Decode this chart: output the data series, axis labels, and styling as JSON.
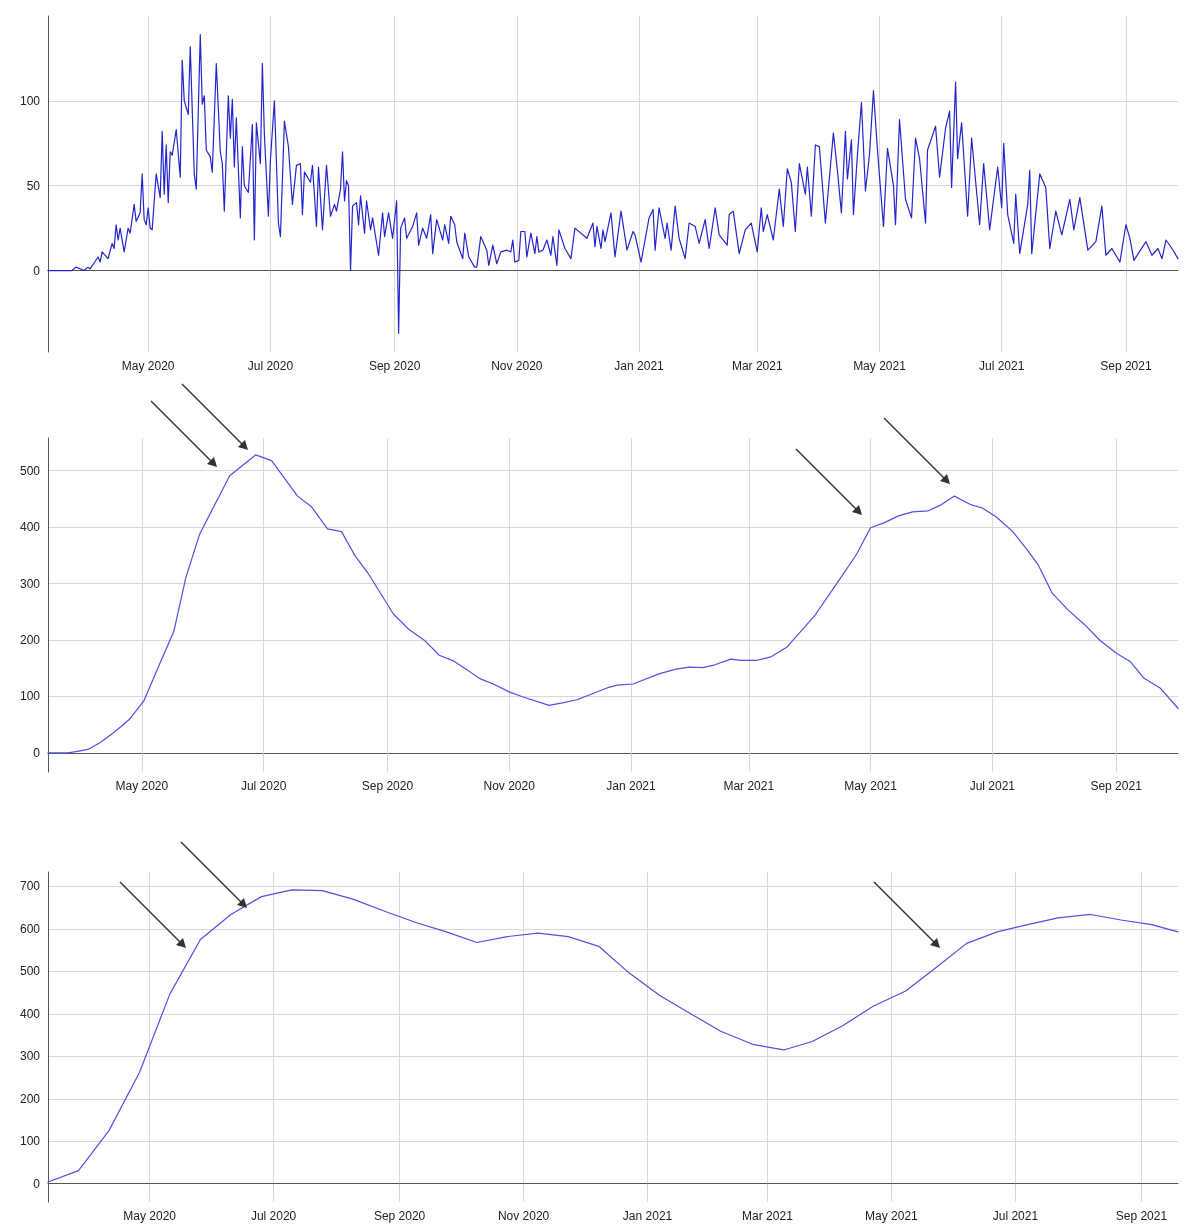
{
  "chart_data": [
    {
      "type": "line",
      "grid": true,
      "marker": "none",
      "line_style": "solid",
      "xlim": [
        "2020-03-12",
        "2021-09-27"
      ],
      "ylim": [
        -48,
        150
      ],
      "yticks": [
        0,
        50,
        100
      ],
      "xticks": [
        {
          "value": "2020-05-01",
          "label": "May 2020"
        },
        {
          "value": "2020-07-01",
          "label": "Jul 2020"
        },
        {
          "value": "2020-09-01",
          "label": "Sep 2020"
        },
        {
          "value": "2020-11-01",
          "label": "Nov 2020"
        },
        {
          "value": "2021-01-01",
          "label": "Jan 2021"
        },
        {
          "value": "2021-03-01",
          "label": "Mar 2021"
        },
        {
          "value": "2021-05-01",
          "label": "May 2021"
        },
        {
          "value": "2021-07-01",
          "label": "Jul 2021"
        },
        {
          "value": "2021-09-01",
          "label": "Sep 2021"
        }
      ],
      "series": [
        {
          "color": "#2424cc",
          "x": [
            "2020-03-12",
            "2020-03-24",
            "2020-03-26",
            "2020-03-30",
            "2020-04-01",
            "2020-04-02",
            "2020-04-06",
            "2020-04-07",
            "2020-04-08",
            "2020-04-11",
            "2020-04-13",
            "2020-04-14",
            "2020-04-15",
            "2020-04-16",
            "2020-04-17",
            "2020-04-19",
            "2020-04-21",
            "2020-04-22",
            "2020-04-24",
            "2020-04-25",
            "2020-04-27",
            "2020-04-28",
            "2020-04-29",
            "2020-04-30",
            "2020-05-01",
            "2020-05-02",
            "2020-05-03",
            "2020-05-05",
            "2020-05-07",
            "2020-05-08",
            "2020-05-09",
            "2020-05-10",
            "2020-05-11",
            "2020-05-12",
            "2020-05-13",
            "2020-05-15",
            "2020-05-17",
            "2020-05-18",
            "2020-05-19",
            "2020-05-21",
            "2020-05-22",
            "2020-05-24",
            "2020-05-25",
            "2020-05-27",
            "2020-05-28",
            "2020-05-29",
            "2020-05-30",
            "2020-06-01",
            "2020-06-02",
            "2020-06-04",
            "2020-06-06",
            "2020-06-07",
            "2020-06-08",
            "2020-06-10",
            "2020-06-11",
            "2020-06-12",
            "2020-06-13",
            "2020-06-14",
            "2020-06-16",
            "2020-06-17",
            "2020-06-18",
            "2020-06-20",
            "2020-06-22",
            "2020-06-23",
            "2020-06-24",
            "2020-06-26",
            "2020-06-27",
            "2020-06-28",
            "2020-06-30",
            "2020-07-01",
            "2020-07-03",
            "2020-07-05",
            "2020-07-06",
            "2020-07-08",
            "2020-07-10",
            "2020-07-12",
            "2020-07-14",
            "2020-07-16",
            "2020-07-17",
            "2020-07-18",
            "2020-07-21",
            "2020-07-22",
            "2020-07-24",
            "2020-07-25",
            "2020-07-27",
            "2020-07-29",
            "2020-07-31",
            "2020-08-02",
            "2020-08-03",
            "2020-08-05",
            "2020-08-06",
            "2020-08-07",
            "2020-08-08",
            "2020-08-09",
            "2020-08-10",
            "2020-08-11",
            "2020-08-13",
            "2020-08-14",
            "2020-08-15",
            "2020-08-17",
            "2020-08-18",
            "2020-08-20",
            "2020-08-21",
            "2020-08-24",
            "2020-08-26",
            "2020-08-27",
            "2020-08-29",
            "2020-08-31",
            "2020-09-02",
            "2020-09-03",
            "2020-09-04",
            "2020-09-06",
            "2020-09-07",
            "2020-09-10",
            "2020-09-12",
            "2020-09-13",
            "2020-09-15",
            "2020-09-17",
            "2020-09-19",
            "2020-09-20",
            "2020-09-22",
            "2020-09-25",
            "2020-09-26",
            "2020-09-28",
            "2020-09-29",
            "2020-10-01",
            "2020-10-02",
            "2020-10-05",
            "2020-10-06",
            "2020-10-08",
            "2020-10-11",
            "2020-10-12",
            "2020-10-14",
            "2020-10-17",
            "2020-10-18",
            "2020-10-20",
            "2020-10-22",
            "2020-10-24",
            "2020-10-27",
            "2020-10-29",
            "2020-10-30",
            "2020-10-31",
            "2020-11-02",
            "2020-11-03",
            "2020-11-05",
            "2020-11-06",
            "2020-11-08",
            "2020-11-10",
            "2020-11-11",
            "2020-11-12",
            "2020-11-14",
            "2020-11-16",
            "2020-11-18",
            "2020-11-19",
            "2020-11-21",
            "2020-11-22",
            "2020-11-25",
            "2020-11-28",
            "2020-11-30",
            "2020-12-06",
            "2020-12-09",
            "2020-12-10",
            "2020-12-11",
            "2020-12-13",
            "2020-12-14",
            "2020-12-15",
            "2020-12-18",
            "2020-12-20",
            "2020-12-23",
            "2020-12-26",
            "2020-12-29",
            "2020-12-30",
            "2021-01-02",
            "2021-01-06",
            "2021-01-08",
            "2021-01-09",
            "2021-01-11",
            "2021-01-14",
            "2021-01-15",
            "2021-01-17",
            "2021-01-19",
            "2021-01-21",
            "2021-01-24",
            "2021-01-26",
            "2021-01-29",
            "2021-01-31",
            "2021-02-03",
            "2021-02-05",
            "2021-02-08",
            "2021-02-10",
            "2021-02-14",
            "2021-02-15",
            "2021-02-17",
            "2021-02-20",
            "2021-02-23",
            "2021-02-26",
            "2021-03-01",
            "2021-03-03",
            "2021-03-04",
            "2021-03-06",
            "2021-03-09",
            "2021-03-12",
            "2021-03-14",
            "2021-03-16",
            "2021-03-18",
            "2021-03-20",
            "2021-03-22",
            "2021-03-25",
            "2021-03-26",
            "2021-03-28",
            "2021-03-30",
            "2021-04-01",
            "2021-04-04",
            "2021-04-08",
            "2021-04-10",
            "2021-04-12",
            "2021-04-14",
            "2021-04-15",
            "2021-04-17",
            "2021-04-18",
            "2021-04-20",
            "2021-04-22",
            "2021-04-24",
            "2021-04-26",
            "2021-04-28",
            "2021-04-30",
            "2021-05-03",
            "2021-05-05",
            "2021-05-08",
            "2021-05-09",
            "2021-05-11",
            "2021-05-14",
            "2021-05-17",
            "2021-05-19",
            "2021-05-21",
            "2021-05-24",
            "2021-05-25",
            "2021-05-29",
            "2021-05-31",
            "2021-06-03",
            "2021-06-05",
            "2021-06-06",
            "2021-06-08",
            "2021-06-09",
            "2021-06-11",
            "2021-06-14",
            "2021-06-16",
            "2021-06-20",
            "2021-06-22",
            "2021-06-25",
            "2021-06-29",
            "2021-07-01",
            "2021-07-02",
            "2021-07-04",
            "2021-07-07",
            "2021-07-08",
            "2021-07-10",
            "2021-07-14",
            "2021-07-15",
            "2021-07-16",
            "2021-07-20",
            "2021-07-23",
            "2021-07-25",
            "2021-07-28",
            "2021-07-31",
            "2021-08-04",
            "2021-08-06",
            "2021-08-09",
            "2021-08-13",
            "2021-08-17",
            "2021-08-20",
            "2021-08-22",
            "2021-08-25",
            "2021-08-29",
            "2021-09-01",
            "2021-09-03",
            "2021-09-05",
            "2021-09-11",
            "2021-09-14",
            "2021-09-17",
            "2021-09-19",
            "2021-09-21",
            "2021-09-24",
            "2021-09-27"
          ],
          "values": [
            0,
            0,
            2,
            0,
            2,
            1,
            8,
            5,
            11,
            7,
            16,
            13,
            27,
            18,
            25,
            11,
            25,
            22,
            39,
            29,
            34,
            57,
            30,
            27,
            37,
            25,
            24,
            57,
            43,
            82,
            45,
            74,
            40,
            70,
            68,
            83,
            55,
            124,
            100,
            92,
            132,
            57,
            48,
            139,
            98,
            103,
            71,
            67,
            58,
            122,
            70,
            63,
            35,
            103,
            78,
            101,
            61,
            90,
            31,
            73,
            50,
            46,
            86,
            18,
            87,
            63,
            122,
            80,
            32,
            65,
            100,
            28,
            20,
            88,
            73,
            39,
            62,
            63,
            33,
            58,
            52,
            62,
            26,
            61,
            24,
            62,
            32,
            39,
            35,
            48,
            70,
            41,
            53,
            50,
            0,
            38,
            40,
            27,
            44,
            22,
            41,
            24,
            31,
            9,
            34,
            20,
            34,
            19,
            41,
            -37,
            25,
            31,
            19,
            26,
            34,
            15,
            25,
            19,
            33,
            10,
            30,
            18,
            27,
            16,
            32,
            27,
            17,
            7,
            22,
            8,
            2,
            2,
            20,
            12,
            3,
            15,
            4,
            11,
            12,
            11,
            18,
            5,
            6,
            23,
            23,
            8,
            22,
            10,
            20,
            11,
            12,
            18,
            9,
            20,
            3,
            24,
            13,
            7,
            25,
            19,
            28,
            14,
            26,
            13,
            24,
            17,
            34,
            8,
            35,
            12,
            23,
            21,
            5,
            31,
            36,
            12,
            37,
            19,
            28,
            12,
            38,
            19,
            7,
            28,
            26,
            16,
            30,
            13,
            37,
            21,
            15,
            33,
            35,
            10,
            24,
            28,
            11,
            37,
            23,
            33,
            18,
            48,
            26,
            60,
            52,
            23,
            63,
            45,
            61,
            32,
            74,
            73,
            28,
            81,
            59,
            34,
            82,
            54,
            77,
            33,
            68,
            99,
            47,
            68,
            106,
            71,
            26,
            72,
            50,
            27,
            89,
            42,
            31,
            78,
            66,
            28,
            71,
            85,
            55,
            84,
            94,
            49,
            111,
            66,
            87,
            32,
            78,
            27,
            63,
            24,
            61,
            37,
            75,
            33,
            16,
            45,
            10,
            39,
            59,
            10,
            57,
            49,
            13,
            35,
            21,
            42,
            24,
            43,
            12,
            17,
            38,
            9,
            13,
            5,
            27,
            19,
            6,
            17,
            9,
            13,
            7,
            18,
            13,
            7
          ]
        }
      ]
    },
    {
      "type": "line",
      "grid": true,
      "marker": "none",
      "line_style": "solid",
      "xlim": [
        "2020-03-15",
        "2021-10-02"
      ],
      "ylim": [
        -34,
        558
      ],
      "yticks": [
        0,
        100,
        200,
        300,
        400,
        500
      ],
      "xticks": [
        {
          "value": "2020-05-01",
          "label": "May 2020"
        },
        {
          "value": "2020-07-01",
          "label": "Jul 2020"
        },
        {
          "value": "2020-09-01",
          "label": "Sep 2020"
        },
        {
          "value": "2020-11-01",
          "label": "Nov 2020"
        },
        {
          "value": "2021-01-01",
          "label": "Jan 2021"
        },
        {
          "value": "2021-03-01",
          "label": "Mar 2021"
        },
        {
          "value": "2021-05-01",
          "label": "May 2021"
        },
        {
          "value": "2021-07-01",
          "label": "Jul 2021"
        },
        {
          "value": "2021-09-01",
          "label": "Sep 2021"
        }
      ],
      "series": [
        {
          "color": "#5050e0",
          "x": [
            "2020-03-15",
            "2020-03-25",
            "2020-03-29",
            "2020-04-04",
            "2020-04-10",
            "2020-04-17",
            "2020-04-25",
            "2020-05-02",
            "2020-05-09",
            "2020-05-17",
            "2020-05-23",
            "2020-05-30",
            "2020-06-14",
            "2020-06-27",
            "2020-07-05",
            "2020-07-18",
            "2020-07-25",
            "2020-08-02",
            "2020-08-09",
            "2020-08-16",
            "2020-08-22",
            "2020-09-04",
            "2020-09-12",
            "2020-09-20",
            "2020-09-27",
            "2020-10-04",
            "2020-10-11",
            "2020-10-17",
            "2020-10-24",
            "2020-11-01",
            "2020-11-08",
            "2020-11-21",
            "2020-11-27",
            "2020-12-05",
            "2020-12-20",
            "2020-12-25",
            "2021-01-02",
            "2021-01-15",
            "2021-01-23",
            "2021-01-30",
            "2021-02-06",
            "2021-02-12",
            "2021-02-20",
            "2021-02-25",
            "2021-03-05",
            "2021-03-12",
            "2021-03-20",
            "2021-04-03",
            "2021-04-16",
            "2021-04-24",
            "2021-05-01",
            "2021-05-08",
            "2021-05-15",
            "2021-05-22",
            "2021-05-30",
            "2021-06-05",
            "2021-06-12",
            "2021-06-20",
            "2021-06-26",
            "2021-07-03",
            "2021-07-11",
            "2021-07-18",
            "2021-07-24",
            "2021-07-31",
            "2021-08-08",
            "2021-08-16",
            "2021-08-24",
            "2021-09-01",
            "2021-09-08",
            "2021-09-15",
            "2021-09-23",
            "2021-10-02"
          ],
          "values": [
            0,
            0,
            2,
            6,
            18,
            36,
            60,
            92,
            150,
            215,
            310,
            388,
            491,
            528,
            518,
            455,
            436,
            397,
            392,
            348,
            320,
            246,
            218,
            198,
            173,
            163,
            147,
            132,
            122,
            108,
            99,
            84,
            88,
            94,
            115,
            120,
            122,
            140,
            148,
            152,
            151,
            156,
            166,
            164,
            164,
            170,
            187,
            243,
            310,
            352,
            399,
            408,
            420,
            427,
            429,
            439,
            455,
            440,
            434,
            418,
            393,
            362,
            333,
            283,
            253,
            228,
            199,
            177,
            162,
            132,
            115,
            79
          ]
        }
      ]
    },
    {
      "type": "line",
      "grid": true,
      "marker": "none",
      "line_style": "solid",
      "xlim": [
        "2020-03-12",
        "2021-09-19"
      ],
      "ylim": [
        -43,
        734
      ],
      "yticks": [
        0,
        100,
        200,
        300,
        400,
        500,
        600,
        700
      ],
      "xticks": [
        {
          "value": "2020-05-01",
          "label": "May 2020"
        },
        {
          "value": "2020-07-01",
          "label": "Jul 2020"
        },
        {
          "value": "2020-09-01",
          "label": "Sep 2020"
        },
        {
          "value": "2020-11-01",
          "label": "Nov 2020"
        },
        {
          "value": "2021-01-01",
          "label": "Jan 2021"
        },
        {
          "value": "2021-03-01",
          "label": "Mar 2021"
        },
        {
          "value": "2021-05-01",
          "label": "May 2021"
        },
        {
          "value": "2021-07-01",
          "label": "Jul 2021"
        },
        {
          "value": "2021-09-01",
          "label": "Sep 2021"
        }
      ],
      "series": [
        {
          "color": "#5050e0",
          "x": [
            "2020-03-12",
            "2020-03-27",
            "2020-04-11",
            "2020-04-26",
            "2020-05-11",
            "2020-05-26",
            "2020-06-10",
            "2020-06-25",
            "2020-07-10",
            "2020-07-25",
            "2020-08-09",
            "2020-08-25",
            "2020-09-09",
            "2020-09-24",
            "2020-10-09",
            "2020-10-24",
            "2020-11-08",
            "2020-11-23",
            "2020-12-08",
            "2020-12-23",
            "2021-01-07",
            "2021-01-22",
            "2021-02-06",
            "2021-02-22",
            "2021-03-09",
            "2021-03-23",
            "2021-04-07",
            "2021-04-22",
            "2021-05-08",
            "2021-05-23",
            "2021-06-07",
            "2021-06-22",
            "2021-07-07",
            "2021-07-22",
            "2021-08-07",
            "2021-08-22",
            "2021-09-06",
            "2021-09-19"
          ],
          "values": [
            4,
            31,
            125,
            262,
            447,
            575,
            634,
            676,
            692,
            690,
            670,
            641,
            615,
            593,
            568,
            582,
            590,
            582,
            559,
            496,
            443,
            401,
            359,
            328,
            315,
            335,
            372,
            418,
            454,
            509,
            566,
            593,
            610,
            626,
            634,
            621,
            610,
            593
          ]
        }
      ]
    }
  ]
}
